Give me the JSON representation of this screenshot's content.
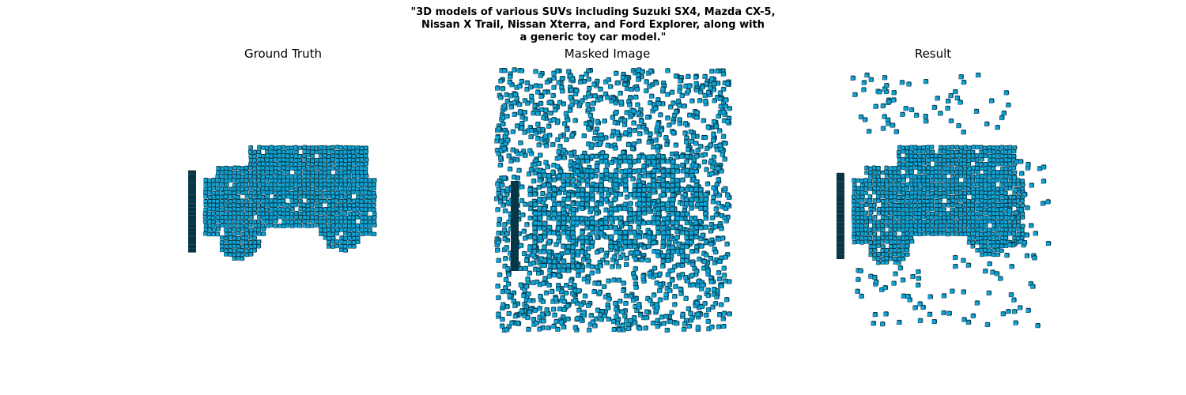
{
  "figure": {
    "suptitle": "\"3D models of various SUVs including Suzuki SX4, Mazda CX-5,\nNissan X Trail, Nissan Xterra, and Ford Explorer, along with\na generic toy car model.\"",
    "panels": [
      {
        "title": "Ground Truth"
      },
      {
        "title": "Masked Image"
      },
      {
        "title": "Result"
      }
    ],
    "colors": {
      "voxel_face": "#0ea6d8",
      "voxel_top": "#1bb8e8",
      "voxel_side": "#0a4a60",
      "voxel_edge": "#063545"
    }
  }
}
